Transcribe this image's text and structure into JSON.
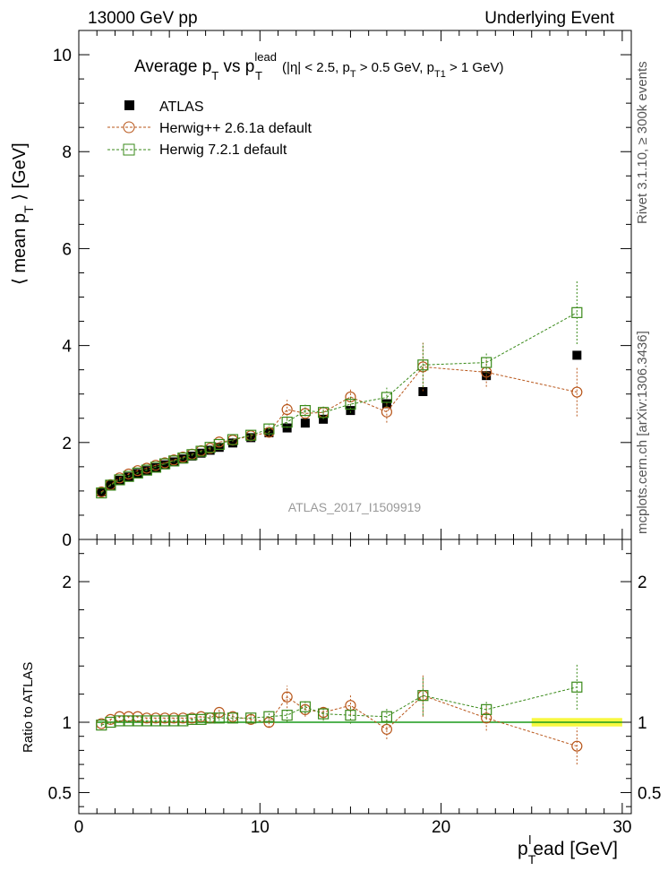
{
  "header": {
    "left": "13000 GeV pp",
    "right": "Underlying Event"
  },
  "side_text": {
    "rivet": "Rivet 3.1.10, ≥ 300k events",
    "mcplots": "mcplots.cern.ch [arXiv:1306.3436]"
  },
  "chart_data": {
    "type": "scatter",
    "title_parts": {
      "main": "Average p",
      "sub_t": "T",
      "vs": " vs p",
      "sup_lead": "lead",
      "sub_t2": "T",
      "cuts_a": " (|η| < 2.5, p",
      "cuts_b": " > 0.5 GeV, p",
      "sub_t1": "T1",
      "cuts_c": " > 1 GeV)"
    },
    "watermark": "ATLAS_2017_I1509919",
    "ylabel_top": {
      "a": "⟨ mean p",
      "sub": "T",
      "b": " ⟩ [GeV]"
    },
    "ylabel_bottom": "Ratio to ATLAS",
    "xlabel": {
      "a": "p",
      "sub": "T",
      "sup": "l",
      "b": "ead [GeV]"
    },
    "xlim": [
      0,
      30.5
    ],
    "ylim_top": [
      0,
      10.5
    ],
    "ylim_bottom": [
      0.35,
      2.3
    ],
    "xticks": [
      0,
      10,
      20,
      30
    ],
    "yticks_top": [
      0,
      2,
      4,
      6,
      8,
      10
    ],
    "yticks_bottom": [
      0.5,
      1,
      2
    ],
    "legend_position": "top-left",
    "band": {
      "x_start": 25,
      "x_end": 30,
      "low": 0.97,
      "high": 1.03,
      "color": "#f5f500"
    },
    "x": [
      1.25,
      1.75,
      2.25,
      2.75,
      3.25,
      3.75,
      4.25,
      4.75,
      5.25,
      5.75,
      6.25,
      6.75,
      7.25,
      7.75,
      8.5,
      9.5,
      10.5,
      11.5,
      12.5,
      13.5,
      15,
      17,
      19,
      22.5,
      27.5
    ],
    "series": [
      {
        "name": "ATLAS",
        "color": "#000000",
        "marker": "filled-square",
        "values": [
          0.98,
          1.12,
          1.22,
          1.29,
          1.36,
          1.42,
          1.48,
          1.54,
          1.6,
          1.66,
          1.72,
          1.78,
          1.84,
          1.9,
          1.99,
          2.1,
          2.2,
          2.3,
          2.4,
          2.48,
          2.66,
          2.8,
          3.05,
          3.38,
          3.8
        ],
        "ratio": [
          1,
          1,
          1,
          1,
          1,
          1,
          1,
          1,
          1,
          1,
          1,
          1,
          1,
          1,
          1,
          1,
          1,
          1,
          1,
          1,
          1,
          1,
          1,
          1,
          1
        ]
      },
      {
        "name": "Herwig++ 2.6.1a default",
        "color": "#b8561a",
        "marker": "open-circle",
        "values": [
          0.98,
          1.13,
          1.27,
          1.35,
          1.42,
          1.47,
          1.53,
          1.58,
          1.64,
          1.7,
          1.76,
          1.83,
          1.88,
          2.01,
          2.05,
          2.14,
          2.21,
          2.68,
          2.6,
          2.62,
          2.94,
          2.63,
          3.56,
          3.45,
          3.04
        ],
        "errors": [
          0.02,
          0.02,
          0.02,
          0.02,
          0.02,
          0.02,
          0.02,
          0.02,
          0.03,
          0.03,
          0.03,
          0.03,
          0.04,
          0.04,
          0.04,
          0.06,
          0.08,
          0.2,
          0.12,
          0.12,
          0.18,
          0.22,
          0.5,
          0.3,
          0.5
        ],
        "ratio": [
          0.99,
          1.02,
          1.04,
          1.04,
          1.04,
          1.03,
          1.03,
          1.03,
          1.03,
          1.03,
          1.03,
          1.04,
          1.03,
          1.07,
          1.04,
          1.02,
          1.0,
          1.18,
          1.09,
          1.07,
          1.12,
          0.95,
          1.19,
          1.03,
          0.83
        ],
        "ratio_errors": [
          0.01,
          0.01,
          0.01,
          0.01,
          0.01,
          0.01,
          0.01,
          0.01,
          0.01,
          0.01,
          0.01,
          0.01,
          0.02,
          0.02,
          0.02,
          0.03,
          0.04,
          0.08,
          0.05,
          0.05,
          0.07,
          0.07,
          0.15,
          0.09,
          0.13
        ]
      },
      {
        "name": "Herwig 7.2.1 default",
        "color": "#3a8a1a",
        "marker": "open-square",
        "values": [
          0.96,
          1.12,
          1.23,
          1.3,
          1.37,
          1.43,
          1.49,
          1.56,
          1.62,
          1.68,
          1.75,
          1.82,
          1.9,
          1.96,
          2.06,
          2.15,
          2.28,
          2.42,
          2.66,
          2.62,
          2.79,
          2.93,
          3.6,
          3.65,
          4.68
        ],
        "errors": [
          0.02,
          0.02,
          0.02,
          0.02,
          0.02,
          0.02,
          0.02,
          0.02,
          0.03,
          0.03,
          0.03,
          0.03,
          0.04,
          0.04,
          0.04,
          0.06,
          0.08,
          0.12,
          0.12,
          0.14,
          0.18,
          0.2,
          0.45,
          0.22,
          0.65
        ],
        "ratio": [
          0.98,
          1.0,
          1.01,
          1.01,
          1.01,
          1.01,
          1.01,
          1.01,
          1.01,
          1.01,
          1.02,
          1.02,
          1.03,
          1.03,
          1.03,
          1.03,
          1.04,
          1.05,
          1.11,
          1.06,
          1.05,
          1.04,
          1.19,
          1.09,
          1.25
        ],
        "ratio_errors": [
          0.01,
          0.01,
          0.01,
          0.01,
          0.01,
          0.01,
          0.01,
          0.01,
          0.01,
          0.01,
          0.01,
          0.01,
          0.02,
          0.02,
          0.02,
          0.03,
          0.04,
          0.05,
          0.05,
          0.05,
          0.06,
          0.06,
          0.14,
          0.06,
          0.16
        ]
      }
    ]
  }
}
